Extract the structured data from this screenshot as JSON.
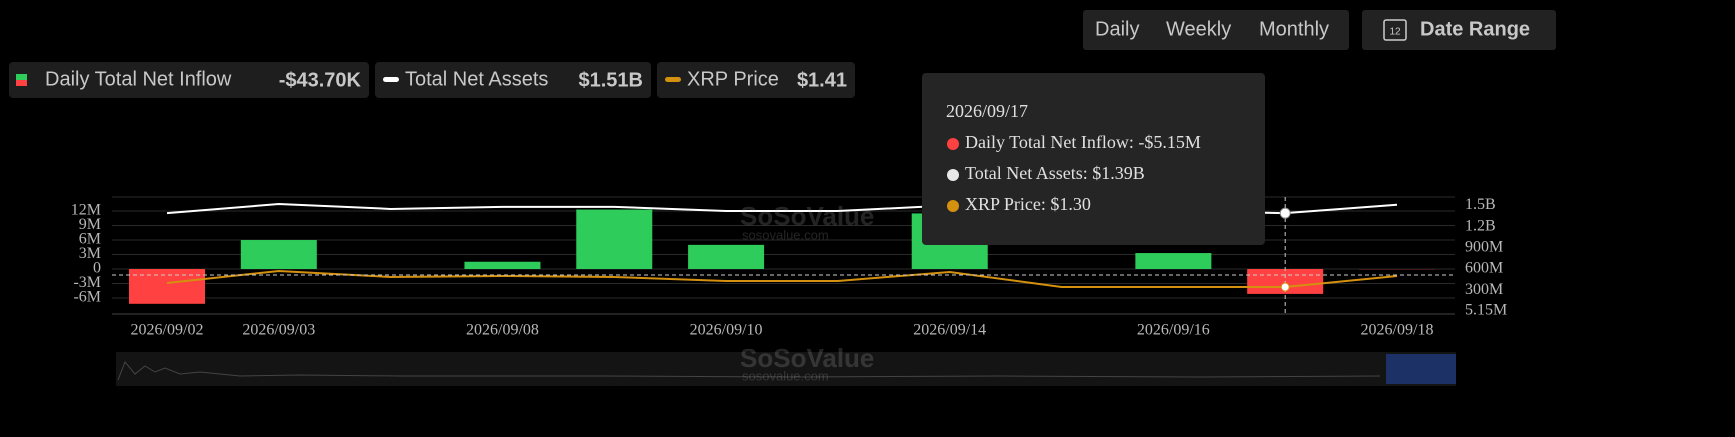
{
  "controls": {
    "periods": [
      "Daily",
      "Weekly",
      "Monthly"
    ],
    "active_period": 0,
    "calendar_day": "12",
    "date_range": "Date Range"
  },
  "watermark": {
    "brand": "SoSoValue",
    "site": "sosovalue.com"
  },
  "tooltip": {
    "date": "2026/09/17",
    "items": [
      {
        "text": "Daily Total Net Inflow: -$5.15M",
        "color": "#ff4141"
      },
      {
        "text": "Total Net Assets: $1.39B",
        "color": "#e8e8e8"
      },
      {
        "text": "XRP Price: $1.30",
        "color": "#d4900f"
      }
    ]
  },
  "chart_data": {
    "type": "bar-line",
    "categories": [
      "2026/09/02",
      "2026/09/03",
      null,
      "2026/09/08",
      null,
      "2026/09/10",
      null,
      "2026/09/14",
      null,
      "2026/09/16",
      null,
      "2026/09/18"
    ],
    "series": [
      {
        "name": "Daily Total Net Inflow",
        "type": "bar",
        "color": "#2ecc5a",
        "negative_color": "#ff4141",
        "current_label": "-$43.70K",
        "values": [
          -7200000,
          6000000,
          0,
          1500000,
          12300000,
          5000000,
          0,
          11500000,
          0,
          3300000,
          -5150000,
          -43700
        ]
      },
      {
        "name": "Total Net Assets",
        "type": "line",
        "axis": "y2",
        "color": "#ffffff",
        "current_label": "$1.51B",
        "values": [
          1390000000,
          1520000000,
          1450000000,
          1480000000,
          1480000000,
          1420000000,
          1420000000,
          1500000000,
          1450000000,
          1420000000,
          1390000000,
          1510000000
        ]
      },
      {
        "name": "XRP Price",
        "type": "line",
        "axis": "y3",
        "color": "#d4900f",
        "current_label": "$1.41",
        "values": [
          1.34,
          1.46,
          1.4,
          1.41,
          1.4,
          1.36,
          1.36,
          1.45,
          1.3,
          1.3,
          1.3,
          1.41
        ]
      }
    ],
    "ylim": [
      -9310000,
      14900000
    ],
    "yticks": [
      {
        "value": 12000000,
        "label": "12M"
      },
      {
        "value": 9000000,
        "label": "9M"
      },
      {
        "value": 6000000,
        "label": "6M"
      },
      {
        "value": 3000000,
        "label": "3M"
      },
      0,
      {
        "value": -3000000,
        "label": "-3M"
      },
      {
        "value": -6000000,
        "label": "-6M"
      }
    ],
    "y2lim": [
      -37000000,
      1619000000
    ],
    "y2ticks": [
      {
        "value": 1500000000,
        "label": "1.5B"
      },
      {
        "value": 1200000000,
        "label": "1.2B"
      },
      {
        "value": 900000000,
        "label": "900M"
      },
      {
        "value": 600000000,
        "label": "600M"
      },
      {
        "value": 300000000,
        "label": "300M"
      },
      {
        "value": 5150000,
        "label": "5.15M"
      }
    ],
    "y3lim": [
      1.03,
      2.2
    ],
    "grid": true,
    "highlight_index": 10
  }
}
